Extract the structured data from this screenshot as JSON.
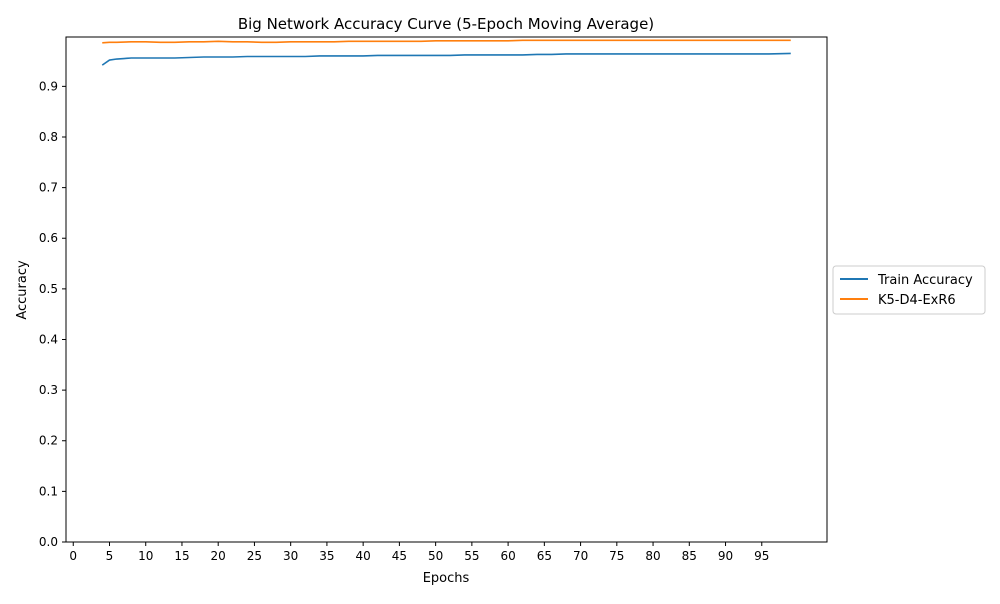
{
  "chart_data": {
    "type": "line",
    "title": "Big Network Accuracy Curve (5-Epoch Moving Average)",
    "xlabel": "Epochs",
    "ylabel": "Accuracy",
    "xlim": [
      -1,
      104
    ],
    "ylim": [
      0.0,
      0.9975
    ],
    "xticks": [
      0,
      5,
      10,
      15,
      20,
      25,
      30,
      35,
      40,
      45,
      50,
      55,
      60,
      65,
      70,
      75,
      80,
      85,
      90,
      95
    ],
    "yticks": [
      0.0,
      0.1,
      0.2,
      0.3,
      0.4,
      0.5,
      0.6,
      0.7,
      0.8,
      0.9
    ],
    "xtick_labels": [
      "0",
      "5",
      "10",
      "15",
      "20",
      "25",
      "30",
      "35",
      "40",
      "45",
      "50",
      "55",
      "60",
      "65",
      "70",
      "75",
      "80",
      "85",
      "90",
      "95"
    ],
    "ytick_labels": [
      "0.0",
      "0.1",
      "0.2",
      "0.3",
      "0.4",
      "0.5",
      "0.6",
      "0.7",
      "0.8",
      "0.9"
    ],
    "grid": false,
    "legend_position": "center-right-outside",
    "series": [
      {
        "name": "Train Accuracy",
        "color": "#1f77b4",
        "x": [
          4,
          5,
          6,
          7,
          8,
          10,
          12,
          14,
          16,
          18,
          20,
          22,
          24,
          26,
          28,
          30,
          32,
          34,
          36,
          38,
          40,
          42,
          44,
          46,
          48,
          50,
          52,
          54,
          56,
          58,
          60,
          62,
          64,
          66,
          68,
          70,
          72,
          74,
          76,
          78,
          80,
          82,
          84,
          86,
          88,
          90,
          92,
          94,
          96,
          99
        ],
        "y": [
          0.942,
          0.952,
          0.954,
          0.955,
          0.956,
          0.956,
          0.956,
          0.956,
          0.957,
          0.958,
          0.958,
          0.958,
          0.959,
          0.959,
          0.959,
          0.959,
          0.959,
          0.96,
          0.96,
          0.96,
          0.96,
          0.961,
          0.961,
          0.961,
          0.961,
          0.961,
          0.961,
          0.962,
          0.962,
          0.962,
          0.962,
          0.962,
          0.963,
          0.963,
          0.964,
          0.964,
          0.964,
          0.964,
          0.964,
          0.964,
          0.964,
          0.964,
          0.964,
          0.964,
          0.964,
          0.964,
          0.964,
          0.964,
          0.964,
          0.965
        ]
      },
      {
        "name": "K5-D4-ExR6",
        "color": "#ff7f0e",
        "x": [
          4,
          5,
          6,
          8,
          10,
          12,
          14,
          16,
          18,
          20,
          22,
          24,
          26,
          28,
          30,
          32,
          34,
          36,
          38,
          40,
          42,
          44,
          46,
          48,
          50,
          52,
          54,
          56,
          58,
          60,
          62,
          64,
          66,
          68,
          70,
          72,
          74,
          76,
          78,
          80,
          82,
          84,
          86,
          88,
          90,
          92,
          94,
          96,
          99
        ],
        "y": [
          0.986,
          0.987,
          0.987,
          0.988,
          0.988,
          0.987,
          0.987,
          0.988,
          0.988,
          0.989,
          0.988,
          0.988,
          0.987,
          0.987,
          0.988,
          0.988,
          0.988,
          0.988,
          0.989,
          0.989,
          0.989,
          0.989,
          0.989,
          0.989,
          0.99,
          0.99,
          0.99,
          0.99,
          0.99,
          0.99,
          0.991,
          0.991,
          0.991,
          0.991,
          0.991,
          0.991,
          0.991,
          0.991,
          0.991,
          0.991,
          0.991,
          0.991,
          0.991,
          0.991,
          0.991,
          0.991,
          0.991,
          0.991,
          0.991
        ]
      }
    ]
  }
}
